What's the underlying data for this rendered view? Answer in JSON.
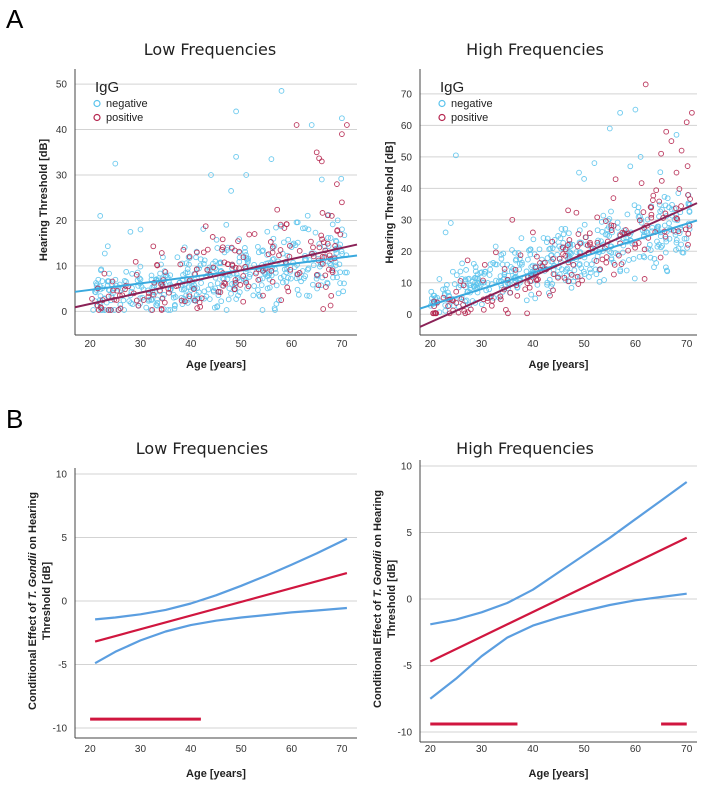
{
  "panels": [
    {
      "label": "A"
    },
    {
      "label": "B"
    }
  ],
  "colors": {
    "negative": "#5bc3ec",
    "positive": "#b5264f",
    "neg_fit": "#3aa9de",
    "pos_fit": "#8a2257",
    "effect": "#d0163f",
    "ci": "#5b9ee0",
    "grid": "#d3d3d3"
  },
  "chart_data": [
    {
      "type": "scatter",
      "title": "Low Frequencies",
      "xlabel": "Age [years]",
      "ylabel": "Hearing Threshold [dB]",
      "xlim": [
        17,
        73
      ],
      "ylim": [
        -3,
        52
      ],
      "xticks": [
        20,
        30,
        40,
        50,
        60,
        70
      ],
      "yticks": [
        0,
        10,
        20,
        30,
        40,
        50
      ],
      "grid": "horizontal",
      "legend": {
        "title": "IgG",
        "position": "top-left",
        "entries": [
          "negative",
          "positive"
        ]
      },
      "series": [
        {
          "name": "negative",
          "n": 430,
          "seed": 11,
          "intercept": 0.4,
          "slope": 0.16,
          "noise": 3.2,
          "frac_pos": 0.35,
          "outliers": [
            [
              25,
              32.5
            ],
            [
              49,
              44
            ],
            [
              58,
              48.5
            ],
            [
              70,
              42.5
            ],
            [
              49,
              34
            ],
            [
              56,
              33.5
            ],
            [
              51,
              30
            ],
            [
              44,
              30
            ],
            [
              48,
              26.5
            ],
            [
              64,
              41
            ],
            [
              66,
              29
            ],
            [
              22,
              21
            ],
            [
              30,
              18
            ],
            [
              28,
              17.5
            ]
          ]
        },
        {
          "name": "positive",
          "n": 170,
          "seed": 29,
          "intercept": -3.8,
          "slope": 0.25,
          "noise": 3.5,
          "frac_pos": 0.4,
          "outliers": [
            [
              61,
              41
            ],
            [
              70,
              39
            ],
            [
              71,
              41
            ],
            [
              65,
              35
            ],
            [
              66,
              33
            ],
            [
              69,
              28
            ],
            [
              70,
              24
            ],
            [
              68,
              21
            ]
          ]
        }
      ],
      "fit_lines": [
        {
          "name": "negative",
          "x": [
            17,
            73
          ],
          "y": [
            4.3,
            12.3
          ]
        },
        {
          "name": "positive",
          "x": [
            17,
            73
          ],
          "y": [
            0.9,
            14.7
          ]
        }
      ]
    },
    {
      "type": "scatter",
      "title": "High Frequencies",
      "xlabel": "Age [years]",
      "ylabel": "Hearing Threshold [dB]",
      "xlim": [
        18,
        72
      ],
      "ylim": [
        -5,
        76
      ],
      "xticks": [
        20,
        30,
        40,
        50,
        60,
        70
      ],
      "yticks": [
        0,
        10,
        20,
        30,
        40,
        50,
        60,
        70
      ],
      "grid": "horizontal",
      "legend": {
        "title": "IgG",
        "position": "top-left",
        "entries": [
          "negative",
          "positive"
        ]
      },
      "series": [
        {
          "name": "negative",
          "n": 430,
          "seed": 47,
          "intercept": -5.4,
          "slope": 0.5,
          "noise": 4.2,
          "frac_pos": 0.45,
          "outliers": [
            [
              25,
              50.5
            ],
            [
              57,
              64
            ],
            [
              60,
              65
            ],
            [
              55,
              59
            ],
            [
              68,
              57
            ],
            [
              52,
              48
            ],
            [
              49,
              45
            ],
            [
              50,
              43
            ],
            [
              24,
              29
            ],
            [
              23,
              26
            ],
            [
              59,
              47
            ],
            [
              61,
              50
            ]
          ]
        },
        {
          "name": "positive",
          "n": 170,
          "seed": 83,
          "intercept": -17.3,
          "slope": 0.74,
          "noise": 5.0,
          "frac_pos": 0.5,
          "outliers": [
            [
              62,
              73
            ],
            [
              71,
              64
            ],
            [
              70,
              61
            ],
            [
              66,
              58
            ],
            [
              67,
              55
            ],
            [
              65,
              51
            ],
            [
              69,
              52
            ],
            [
              68,
              45
            ],
            [
              36,
              30
            ],
            [
              40,
              26
            ]
          ]
        }
      ],
      "fit_lines": [
        {
          "name": "negative",
          "x": [
            18,
            72
          ],
          "y": [
            1.8,
            29.8
          ]
        },
        {
          "name": "positive",
          "x": [
            18,
            72
          ],
          "y": [
            -4.0,
            35.3
          ]
        }
      ]
    },
    {
      "type": "line",
      "title": "Low Frequencies",
      "xlabel": "Age [years]",
      "ylabel_line1": "Conditional Effect of ",
      "ylabel_italic": "T. Gondii",
      "ylabel_line1_end": " on Hearing",
      "ylabel_line2": "Threshold [dB]",
      "xlim": [
        17,
        73
      ],
      "ylim": [
        -10,
        10
      ],
      "xticks": [
        20,
        30,
        40,
        50,
        60,
        70
      ],
      "yticks": [
        -10,
        -5,
        0,
        5,
        10
      ],
      "grid": "horizontal",
      "series": [
        {
          "name": "upper",
          "x": [
            21,
            25,
            30,
            35,
            40,
            45,
            50,
            55,
            60,
            65,
            71
          ],
          "y": [
            -1.45,
            -1.3,
            -1.05,
            -0.7,
            -0.2,
            0.45,
            1.2,
            2.0,
            2.85,
            3.75,
            4.9
          ]
        },
        {
          "name": "effect",
          "x": [
            21,
            71
          ],
          "y": [
            -3.2,
            2.2
          ]
        },
        {
          "name": "lower",
          "x": [
            21,
            25,
            30,
            35,
            40,
            45,
            50,
            55,
            60,
            65,
            71
          ],
          "y": [
            -4.9,
            -4.0,
            -3.1,
            -2.4,
            -1.9,
            -1.55,
            -1.3,
            -1.1,
            -0.9,
            -0.75,
            -0.55
          ]
        }
      ],
      "significance_bars": [
        {
          "x": [
            20,
            42
          ],
          "y": -9.3
        }
      ]
    },
    {
      "type": "line",
      "title": "High Frequencies",
      "xlabel": "Age [years]",
      "ylabel_line1": "Conditional Effect of ",
      "ylabel_italic": "T. Gondii",
      "ylabel_line1_end": " on Hearing",
      "ylabel_line2": "Threshold [dB]",
      "xlim": [
        18,
        72
      ],
      "ylim": [
        -10,
        10
      ],
      "xticks": [
        20,
        30,
        40,
        50,
        60,
        70
      ],
      "yticks": [
        -10,
        -5,
        0,
        5,
        10
      ],
      "grid": "horizontal",
      "series": [
        {
          "name": "upper",
          "x": [
            20,
            25,
            30,
            35,
            40,
            45,
            50,
            55,
            60,
            65,
            70
          ],
          "y": [
            -1.9,
            -1.55,
            -1.0,
            -0.3,
            0.7,
            2.0,
            3.3,
            4.6,
            6.0,
            7.4,
            8.8
          ]
        },
        {
          "name": "effect",
          "x": [
            20,
            70
          ],
          "y": [
            -4.7,
            4.6
          ]
        },
        {
          "name": "lower",
          "x": [
            20,
            25,
            30,
            35,
            40,
            45,
            50,
            55,
            60,
            65,
            70
          ],
          "y": [
            -7.5,
            -6.0,
            -4.3,
            -2.9,
            -2.0,
            -1.4,
            -0.9,
            -0.45,
            -0.1,
            0.15,
            0.4
          ]
        }
      ],
      "significance_bars": [
        {
          "x": [
            20,
            37
          ],
          "y": -9.4
        },
        {
          "x": [
            65,
            70
          ],
          "y": -9.4
        }
      ]
    }
  ]
}
